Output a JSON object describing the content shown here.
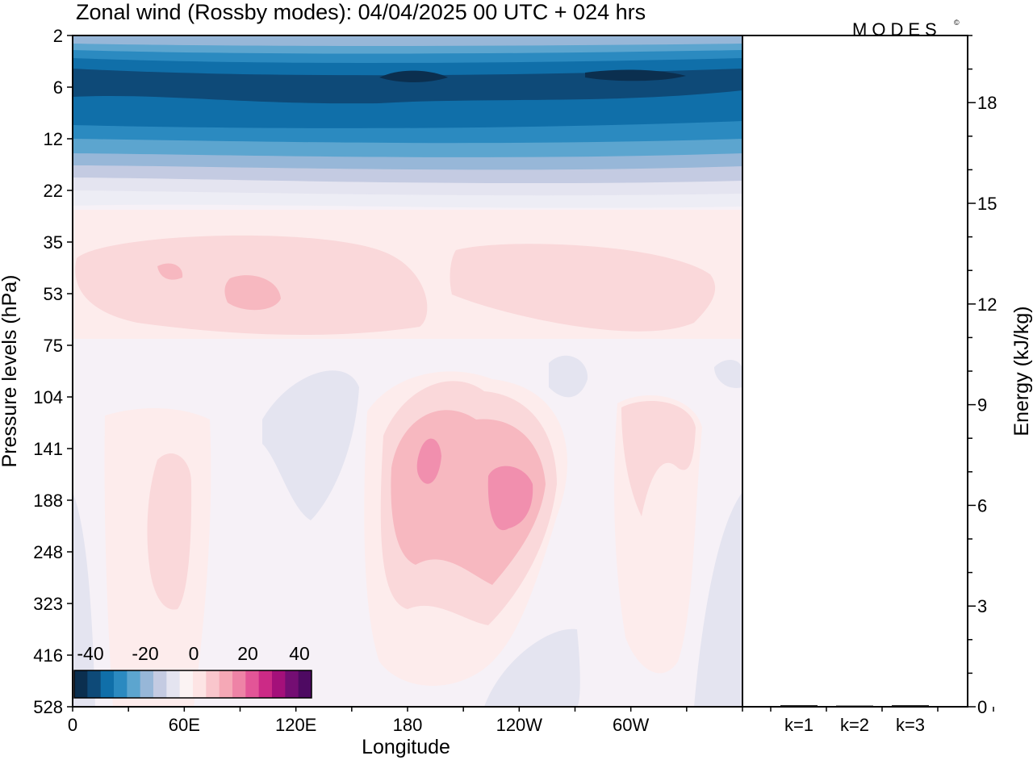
{
  "chart_data": {
    "type": "heatmap",
    "title": "Zonal wind (Rossby modes):  04/04/2025  00 UTC  + 024 hrs",
    "logo": "MODES",
    "logo_mark": "©",
    "xlabel": "Longitude",
    "ylabel": "Pressure levels (hPa)",
    "x_ticks": [
      "0",
      "60E",
      "120E",
      "180",
      "120W",
      "60W"
    ],
    "y_ticks": [
      "2",
      "6",
      "12",
      "22",
      "35",
      "53",
      "75",
      "104",
      "141",
      "188",
      "248",
      "323",
      "416",
      "528"
    ],
    "y_scale": "log",
    "colorbar": {
      "ticks": [
        "-40",
        "-20",
        "0",
        "20",
        "40"
      ],
      "colors": [
        "#0b2f4f",
        "#0e4a78",
        "#106fa9",
        "#2b8ac0",
        "#5ca5cf",
        "#97b7d8",
        "#c4cbe2",
        "#e4e4f0",
        "#fbf3f3",
        "#fde4e4",
        "#f9c6cc",
        "#f5a8b6",
        "#ee83a6",
        "#e35597",
        "#cc2a86",
        "#a4107a",
        "#740e73",
        "#4e0a62"
      ]
    },
    "energy_panel": {
      "ylabel": "Energy (kJ/kg)",
      "y_ticks": [
        "0",
        "3",
        "6",
        "9",
        "12",
        "15",
        "18"
      ],
      "ylim": [
        0,
        20
      ],
      "categories": [
        "k=1",
        "k=2",
        "k=3"
      ],
      "values": [
        0.02,
        0.01,
        0.02
      ]
    }
  }
}
